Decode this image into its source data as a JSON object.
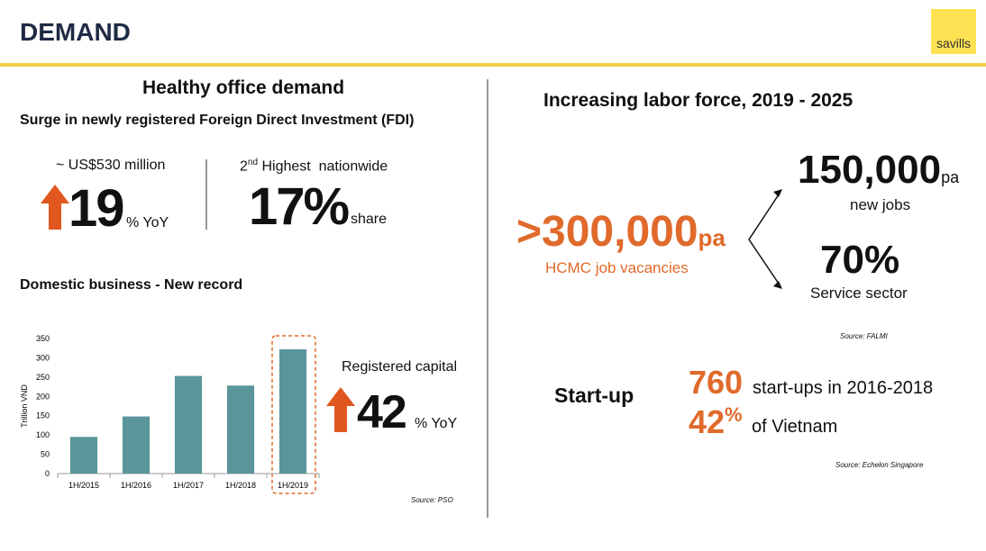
{
  "header": {
    "title": "DEMAND",
    "logo": "savills"
  },
  "left": {
    "heading": "Healthy office demand",
    "fdi": {
      "heading": "Surge in newly registered Foreign Direct Investment (FDI)",
      "growth": {
        "caption": "~ US$530 million",
        "value": "19",
        "unit": "% YoY"
      },
      "share": {
        "rank": "2",
        "ordinal": "nd",
        "caption": " Highest  nationwide",
        "value": "17%",
        "unit": "share"
      }
    },
    "domestic": {
      "heading": "Domestic business - New record",
      "callout": {
        "caption": "Registered capital",
        "value": "42",
        "unit": "% YoY"
      },
      "source": "Source: PSO"
    }
  },
  "right": {
    "heading": "Increasing labor force, 2019 - 2025",
    "vacancies": {
      "value": ">300,000",
      "unit": "pa",
      "caption": "HCMC job vacancies"
    },
    "new_jobs": {
      "value": "150,000",
      "unit": "pa",
      "caption": "new jobs"
    },
    "service": {
      "value": "70%",
      "caption": "Service sector"
    },
    "source": "Source: FALMI",
    "startup": {
      "label": "Start-up",
      "count": "760",
      "count_caption": "start-ups in 2016-2018",
      "share": "42",
      "share_unit": "%",
      "share_caption": "of Vietnam",
      "source": "Source: Echelon Singapore"
    }
  },
  "chart_data": {
    "type": "bar",
    "y_label": "Trillion VND",
    "categories": [
      "1H/2015",
      "1H/2016",
      "1H/2017",
      "1H/2018",
      "1H/2019"
    ],
    "values": [
      95,
      148,
      253,
      228,
      322
    ],
    "color": "#5a9599",
    "ylim": [
      0,
      350
    ],
    "yticks": [
      0,
      50,
      100,
      150,
      200,
      250,
      300,
      350
    ],
    "grid": false
  }
}
